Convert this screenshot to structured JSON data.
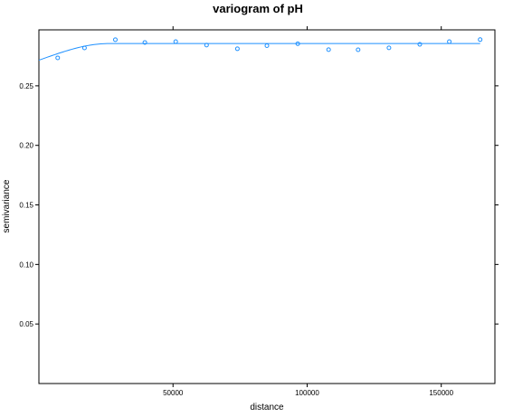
{
  "chart_data": {
    "type": "scatter",
    "title": "variogram of pH",
    "xlabel": "distance",
    "ylabel": "semivariance",
    "xlim": [
      0,
      170000
    ],
    "ylim": [
      0,
      0.297
    ],
    "x_ticks": [
      50000,
      100000,
      150000
    ],
    "y_ticks": [
      0.05,
      0.1,
      0.15,
      0.2,
      0.25
    ],
    "x_tick_labels": [
      "50000",
      "100000",
      "150000"
    ],
    "y_tick_labels": [
      "0.05",
      "0.10",
      "0.15",
      "0.20",
      "0.25"
    ],
    "points": [
      {
        "x": 7000,
        "y": 0.2735
      },
      {
        "x": 17000,
        "y": 0.2818
      },
      {
        "x": 28500,
        "y": 0.2887
      },
      {
        "x": 39500,
        "y": 0.2864
      },
      {
        "x": 51000,
        "y": 0.2871
      },
      {
        "x": 62500,
        "y": 0.2842
      },
      {
        "x": 74000,
        "y": 0.2811
      },
      {
        "x": 85000,
        "y": 0.2837
      },
      {
        "x": 96500,
        "y": 0.2853
      },
      {
        "x": 108000,
        "y": 0.2804
      },
      {
        "x": 119000,
        "y": 0.2803
      },
      {
        "x": 130500,
        "y": 0.2819
      },
      {
        "x": 142000,
        "y": 0.2848
      },
      {
        "x": 153000,
        "y": 0.2871
      },
      {
        "x": 164500,
        "y": 0.2888
      }
    ],
    "model": {
      "nugget": 0.2715,
      "psill": 0.014,
      "range": 26000,
      "x_end": 164500
    },
    "grid": false,
    "legend": "none",
    "colors": {
      "series": "#1e90ff",
      "axis": "#000000"
    }
  }
}
